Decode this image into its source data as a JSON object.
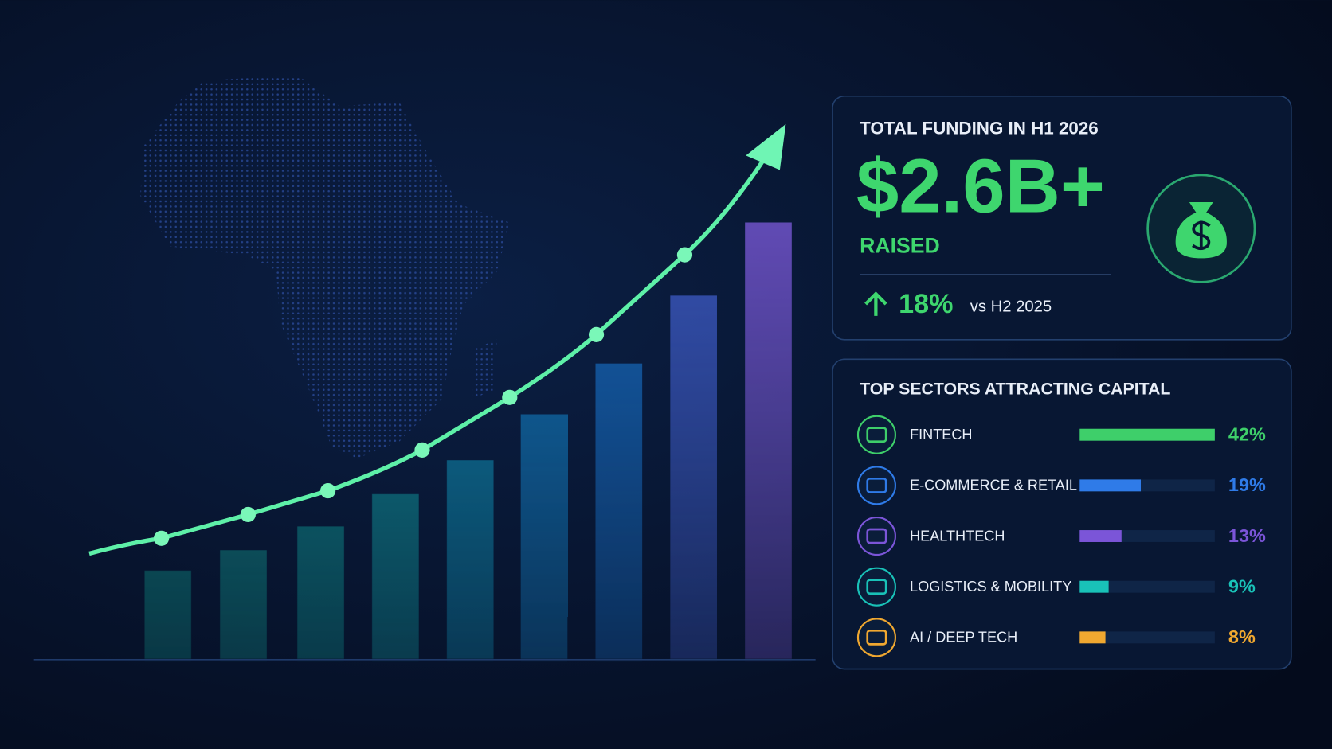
{
  "funding": {
    "title": "TOTAL FUNDING IN H1 2026",
    "amount": "$2.6B+",
    "label": "RAISED",
    "change": "18%",
    "comparison": "vs H2 2025"
  },
  "sectors": {
    "title": "TOP SECTORS ATTRACTING CAPITAL",
    "items": [
      {
        "name": "FINTECH",
        "value": 42,
        "value_label": "42%",
        "color": "#3ecf6a"
      },
      {
        "name": "E-COMMERCE & RETAIL",
        "value": 19,
        "value_label": "19%",
        "color": "#2f7be8"
      },
      {
        "name": "HEALTHTECH",
        "value": 13,
        "value_label": "13%",
        "color": "#7b55d8"
      },
      {
        "name": "LOGISTICS & MOBILITY",
        "value": 9,
        "value_label": "9%",
        "color": "#19c2b8"
      },
      {
        "name": "AI / DEEP TECH",
        "value": 8,
        "value_label": "8%",
        "color": "#f0a830"
      }
    ]
  }
}
